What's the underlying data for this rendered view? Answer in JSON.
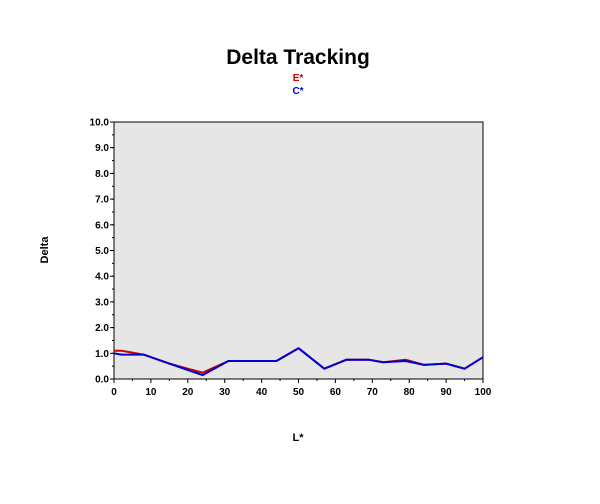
{
  "chart_data": {
    "type": "line",
    "title": "Delta Tracking",
    "xlabel": "L*",
    "ylabel": "Delta",
    "xlim": [
      0,
      100
    ],
    "ylim": [
      0,
      10
    ],
    "grid": false,
    "legend_position": "top-center",
    "plot_background": "#e6e6e6",
    "x_ticks": [
      "0",
      "10",
      "20",
      "30",
      "40",
      "50",
      "60",
      "70",
      "80",
      "90",
      "100"
    ],
    "y_ticks": [
      "0.0",
      "1.0",
      "2.0",
      "3.0",
      "4.0",
      "5.0",
      "6.0",
      "7.0",
      "8.0",
      "9.0",
      "10.0"
    ],
    "series": [
      {
        "name": "E*",
        "color": "#cc0000",
        "x": [
          0,
          2,
          8,
          15,
          20,
          24,
          31,
          37,
          44,
          50,
          57,
          63,
          69,
          73,
          79,
          84,
          90,
          95,
          100
        ],
        "y": [
          1.1,
          1.1,
          0.95,
          0.6,
          0.4,
          0.25,
          0.7,
          0.7,
          0.7,
          1.2,
          0.4,
          0.75,
          0.75,
          0.65,
          0.75,
          0.55,
          0.6,
          0.4,
          0.85
        ]
      },
      {
        "name": "C*",
        "color": "#0000cc",
        "x": [
          0,
          2,
          8,
          15,
          20,
          24,
          31,
          37,
          44,
          50,
          57,
          63,
          69,
          73,
          79,
          84,
          90,
          95,
          100
        ],
        "y": [
          1.0,
          0.95,
          0.95,
          0.6,
          0.35,
          0.15,
          0.7,
          0.7,
          0.7,
          1.2,
          0.4,
          0.75,
          0.75,
          0.65,
          0.7,
          0.55,
          0.6,
          0.4,
          0.85
        ]
      }
    ]
  }
}
